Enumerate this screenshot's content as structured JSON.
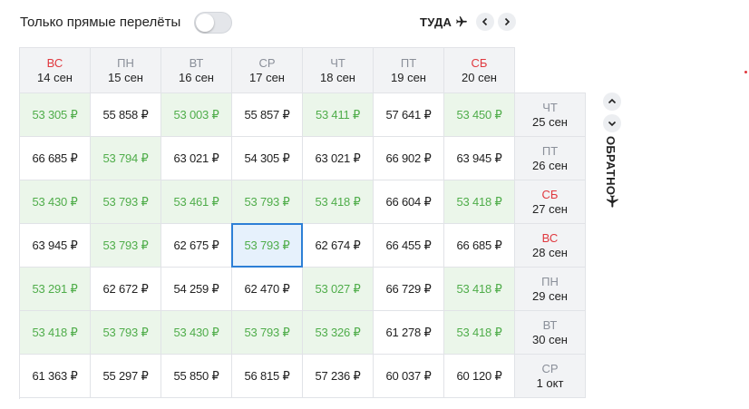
{
  "filter": {
    "label": "Только прямые перелёты"
  },
  "outbound": {
    "label": "ТУДА"
  },
  "return": {
    "label": "ОБРАТНО"
  },
  "columns": [
    {
      "day": "ВС",
      "date": "14 сен",
      "weekend": true
    },
    {
      "day": "ПН",
      "date": "15 сен",
      "weekend": false
    },
    {
      "day": "ВТ",
      "date": "16 сен",
      "weekend": false
    },
    {
      "day": "СР",
      "date": "17 сен",
      "weekend": false
    },
    {
      "day": "ЧТ",
      "date": "18 сен",
      "weekend": false
    },
    {
      "day": "ПТ",
      "date": "19 сен",
      "weekend": false
    },
    {
      "day": "СБ",
      "date": "20 сен",
      "weekend": true
    }
  ],
  "rows": [
    {
      "day": "ЧТ",
      "date": "25 сен",
      "weekend": false,
      "cells": [
        {
          "price": "53 305 ₽",
          "cheap": true
        },
        {
          "price": "55 858 ₽",
          "cheap": false
        },
        {
          "price": "53 003 ₽",
          "cheap": true
        },
        {
          "price": "55 857 ₽",
          "cheap": false
        },
        {
          "price": "53 411 ₽",
          "cheap": true
        },
        {
          "price": "57 641 ₽",
          "cheap": false
        },
        {
          "price": "53 450 ₽",
          "cheap": true
        }
      ]
    },
    {
      "day": "ПТ",
      "date": "26 сен",
      "weekend": false,
      "cells": [
        {
          "price": "66 685 ₽",
          "cheap": false
        },
        {
          "price": "53 794 ₽",
          "cheap": true
        },
        {
          "price": "63 021 ₽",
          "cheap": false
        },
        {
          "price": "54 305 ₽",
          "cheap": false
        },
        {
          "price": "63 021 ₽",
          "cheap": false
        },
        {
          "price": "66 902 ₽",
          "cheap": false
        },
        {
          "price": "63 945 ₽",
          "cheap": false
        }
      ]
    },
    {
      "day": "СБ",
      "date": "27 сен",
      "weekend": true,
      "cells": [
        {
          "price": "53 430 ₽",
          "cheap": true
        },
        {
          "price": "53 793 ₽",
          "cheap": true
        },
        {
          "price": "53 461 ₽",
          "cheap": true
        },
        {
          "price": "53 793 ₽",
          "cheap": true
        },
        {
          "price": "53 418 ₽",
          "cheap": true
        },
        {
          "price": "66 604 ₽",
          "cheap": false
        },
        {
          "price": "53 418 ₽",
          "cheap": true
        }
      ]
    },
    {
      "day": "ВС",
      "date": "28 сен",
      "weekend": true,
      "cells": [
        {
          "price": "63 945 ₽",
          "cheap": false
        },
        {
          "price": "53 793 ₽",
          "cheap": true
        },
        {
          "price": "62 675 ₽",
          "cheap": false
        },
        {
          "price": "53 793 ₽",
          "cheap": true,
          "selected": true
        },
        {
          "price": "62 674 ₽",
          "cheap": false
        },
        {
          "price": "66 455 ₽",
          "cheap": false
        },
        {
          "price": "66 685 ₽",
          "cheap": false
        }
      ]
    },
    {
      "day": "ПН",
      "date": "29 сен",
      "weekend": false,
      "cells": [
        {
          "price": "53 291 ₽",
          "cheap": true
        },
        {
          "price": "62 672 ₽",
          "cheap": false
        },
        {
          "price": "54 259 ₽",
          "cheap": false
        },
        {
          "price": "62 470 ₽",
          "cheap": false
        },
        {
          "price": "53 027 ₽",
          "cheap": true
        },
        {
          "price": "66 729 ₽",
          "cheap": false
        },
        {
          "price": "53 418 ₽",
          "cheap": true
        }
      ]
    },
    {
      "day": "ВТ",
      "date": "30 сен",
      "weekend": false,
      "cells": [
        {
          "price": "53 418 ₽",
          "cheap": true
        },
        {
          "price": "53 793 ₽",
          "cheap": true
        },
        {
          "price": "53 430 ₽",
          "cheap": true
        },
        {
          "price": "53 793 ₽",
          "cheap": true
        },
        {
          "price": "53 326 ₽",
          "cheap": true
        },
        {
          "price": "61 278 ₽",
          "cheap": false
        },
        {
          "price": "53 418 ₽",
          "cheap": true
        }
      ]
    },
    {
      "day": "СР",
      "date": "1 окт",
      "weekend": false,
      "cells": [
        {
          "price": "61 363 ₽",
          "cheap": false
        },
        {
          "price": "55 297 ₽",
          "cheap": false
        },
        {
          "price": "55 850 ₽",
          "cheap": false
        },
        {
          "price": "56 815 ₽",
          "cheap": false
        },
        {
          "price": "57 236 ₽",
          "cheap": false
        },
        {
          "price": "60 037 ₽",
          "cheap": false
        },
        {
          "price": "60 120 ₽",
          "cheap": false
        }
      ]
    }
  ]
}
